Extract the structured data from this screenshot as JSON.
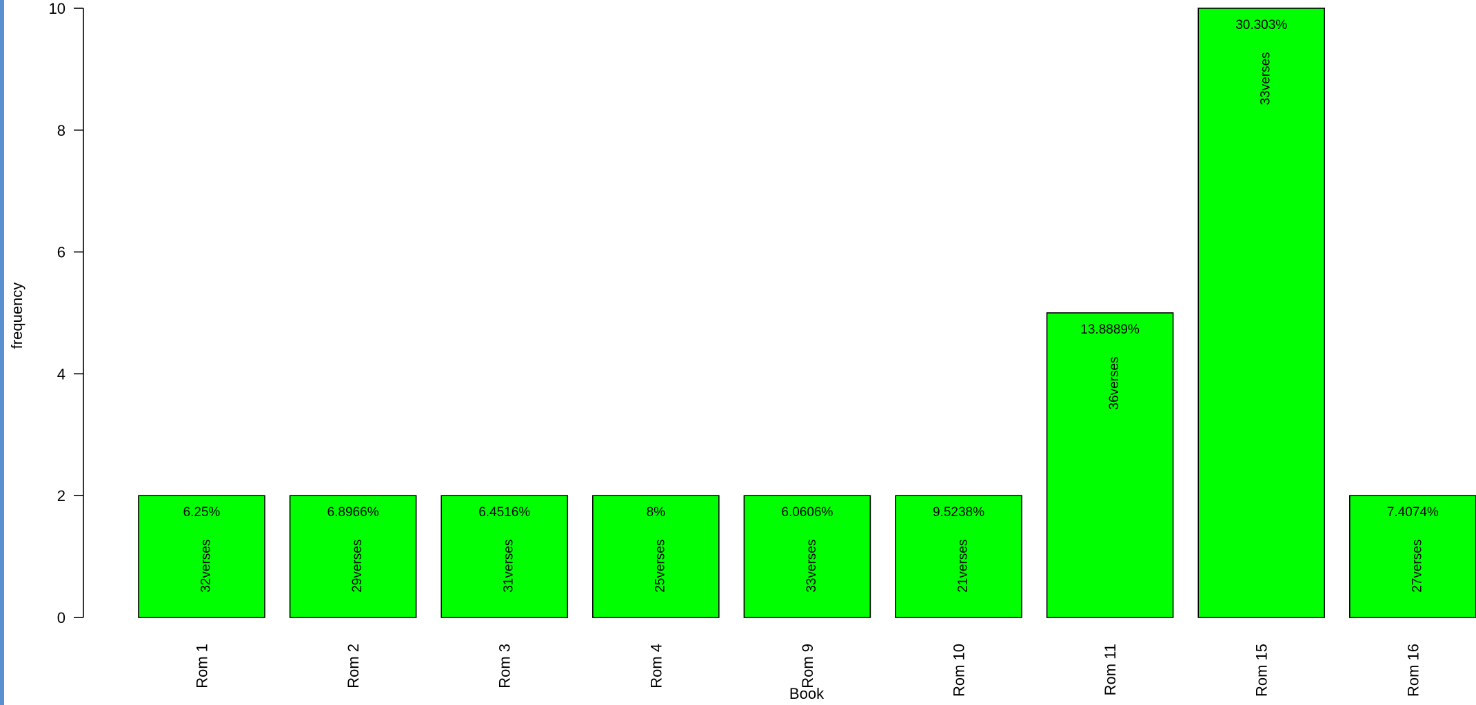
{
  "chart_data": {
    "type": "bar",
    "categories": [
      "Rom 1",
      "Rom 2",
      "Rom 3",
      "Rom 4",
      "Rom 9",
      "Rom 10",
      "Rom 11",
      "Rom 15",
      "Rom 16"
    ],
    "values": [
      2,
      2,
      2,
      2,
      2,
      2,
      5,
      10,
      2
    ],
    "percent_labels": [
      "6.25%",
      "6.8966%",
      "6.4516%",
      "8%",
      "6.0606%",
      "9.5238%",
      "13.8889%",
      "30.303%",
      "7.4074%"
    ],
    "verse_labels": [
      "32verses",
      "29verses",
      "31verses",
      "25verses",
      "33verses",
      "21verses",
      "36verses",
      "33verses",
      "27verses"
    ],
    "xlabel": "Book",
    "ylabel": "frequency",
    "ylim": [
      0,
      10
    ],
    "yticks": [
      "0",
      "2",
      "4",
      "6",
      "8",
      "10"
    ],
    "bar_color": "#00ff00",
    "grid": false,
    "legend": "none"
  }
}
